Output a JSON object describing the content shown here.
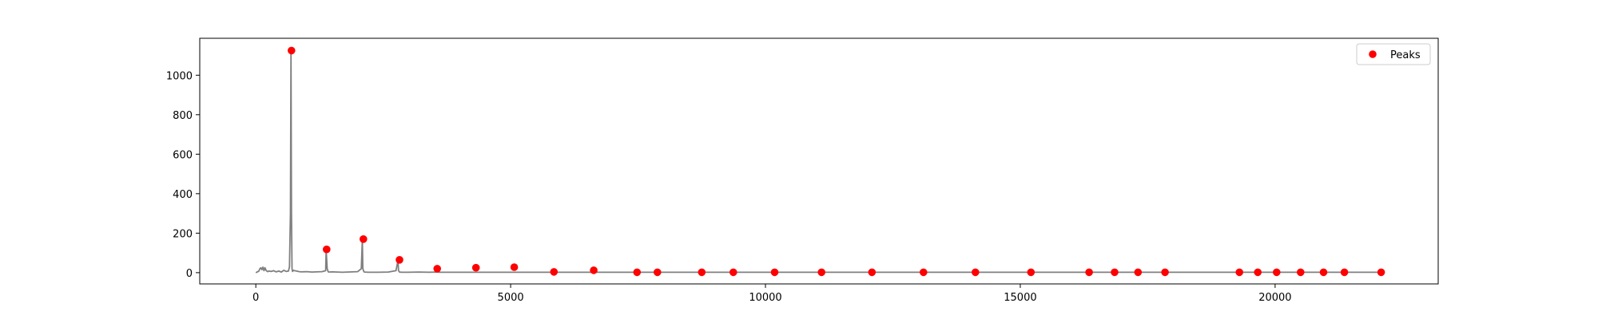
{
  "chart_data": {
    "type": "line",
    "title": "",
    "xlabel": "",
    "ylabel": "",
    "xlim": [
      -1100,
      23200
    ],
    "ylim": [
      -57,
      1187
    ],
    "x_ticks": [
      0,
      5000,
      10000,
      15000,
      20000
    ],
    "x_tick_labels": [
      "0",
      "5000",
      "10000",
      "15000",
      "20000"
    ],
    "y_ticks": [
      0,
      200,
      400,
      600,
      800,
      1000
    ],
    "y_tick_labels": [
      "0",
      "200",
      "400",
      "600",
      "800",
      "1000"
    ],
    "grid": false,
    "legend": {
      "placement": "upper right",
      "entries": [
        "Peaks"
      ]
    },
    "colors": {
      "signal": "#7f7f7f",
      "peaks": "#ff0000",
      "axes": "#000000",
      "legend_border": "#cccccc"
    },
    "series": [
      {
        "kind": "line",
        "x": [
          0,
          60,
          80,
          100,
          120,
          140,
          160,
          180,
          200,
          230,
          260,
          300,
          350,
          400,
          450,
          500,
          550,
          600,
          640,
          660,
          680,
          690,
          700,
          710,
          720,
          740,
          760,
          800,
          850,
          900,
          1000,
          1100,
          1200,
          1300,
          1370,
          1380,
          1400,
          1420,
          1430,
          1500,
          1600,
          1700,
          1800,
          1900,
          2000,
          2070,
          2090,
          2100,
          2120,
          2130,
          2200,
          2400,
          2600,
          2750,
          2790,
          2800,
          2820,
          2860,
          3000,
          3200,
          3400,
          3560,
          3600,
          4000,
          4300,
          4500,
          5000,
          5070,
          5300,
          5850,
          6000,
          6600,
          7000,
          7480,
          7880,
          8000,
          8750,
          9000,
          9370,
          10000,
          10180,
          11100,
          12000,
          12100,
          13100,
          14000,
          14120,
          15000,
          15210,
          16000,
          16350,
          16850,
          17310,
          17840,
          18000,
          19300,
          19660,
          20000,
          20500,
          20950,
          21360,
          22000,
          22080
        ],
        "y": [
          0,
          8,
          20,
          25,
          15,
          28,
          10,
          25,
          12,
          5,
          8,
          6,
          10,
          4,
          8,
          3,
          12,
          6,
          8,
          30,
          300,
          1120,
          300,
          20,
          6,
          12,
          10,
          8,
          5,
          4,
          5,
          3,
          4,
          5,
          10,
          115,
          20,
          5,
          3,
          4,
          3,
          2,
          3,
          4,
          5,
          20,
          168,
          20,
          5,
          3,
          2,
          2,
          3,
          10,
          62,
          10,
          3,
          2,
          2,
          3,
          2,
          3,
          2,
          2,
          2,
          2,
          2,
          2,
          2,
          2,
          2,
          2,
          2,
          2,
          2,
          2,
          2,
          2,
          2,
          2,
          2,
          2,
          2,
          2,
          2,
          2,
          2,
          2,
          2,
          2,
          2,
          2,
          2,
          2,
          2,
          2,
          2,
          2,
          2,
          2,
          2,
          2,
          2
        ]
      },
      {
        "kind": "scatter",
        "name": "Peaks",
        "x": [
          700,
          1390,
          2110,
          2820,
          3560,
          4320,
          5070,
          5850,
          6630,
          7480,
          7880,
          8750,
          9370,
          10180,
          11100,
          12090,
          13100,
          14120,
          15210,
          16350,
          16850,
          17310,
          17840,
          19300,
          19660,
          20030,
          20500,
          20950,
          21360,
          22080
        ],
        "y": [
          1125,
          118,
          170,
          65,
          20,
          25,
          28,
          4,
          12,
          2,
          2,
          2,
          2,
          2,
          2,
          2,
          2,
          2,
          2,
          2,
          2,
          2,
          2,
          2,
          2,
          2,
          2,
          2,
          2,
          2
        ]
      }
    ]
  }
}
